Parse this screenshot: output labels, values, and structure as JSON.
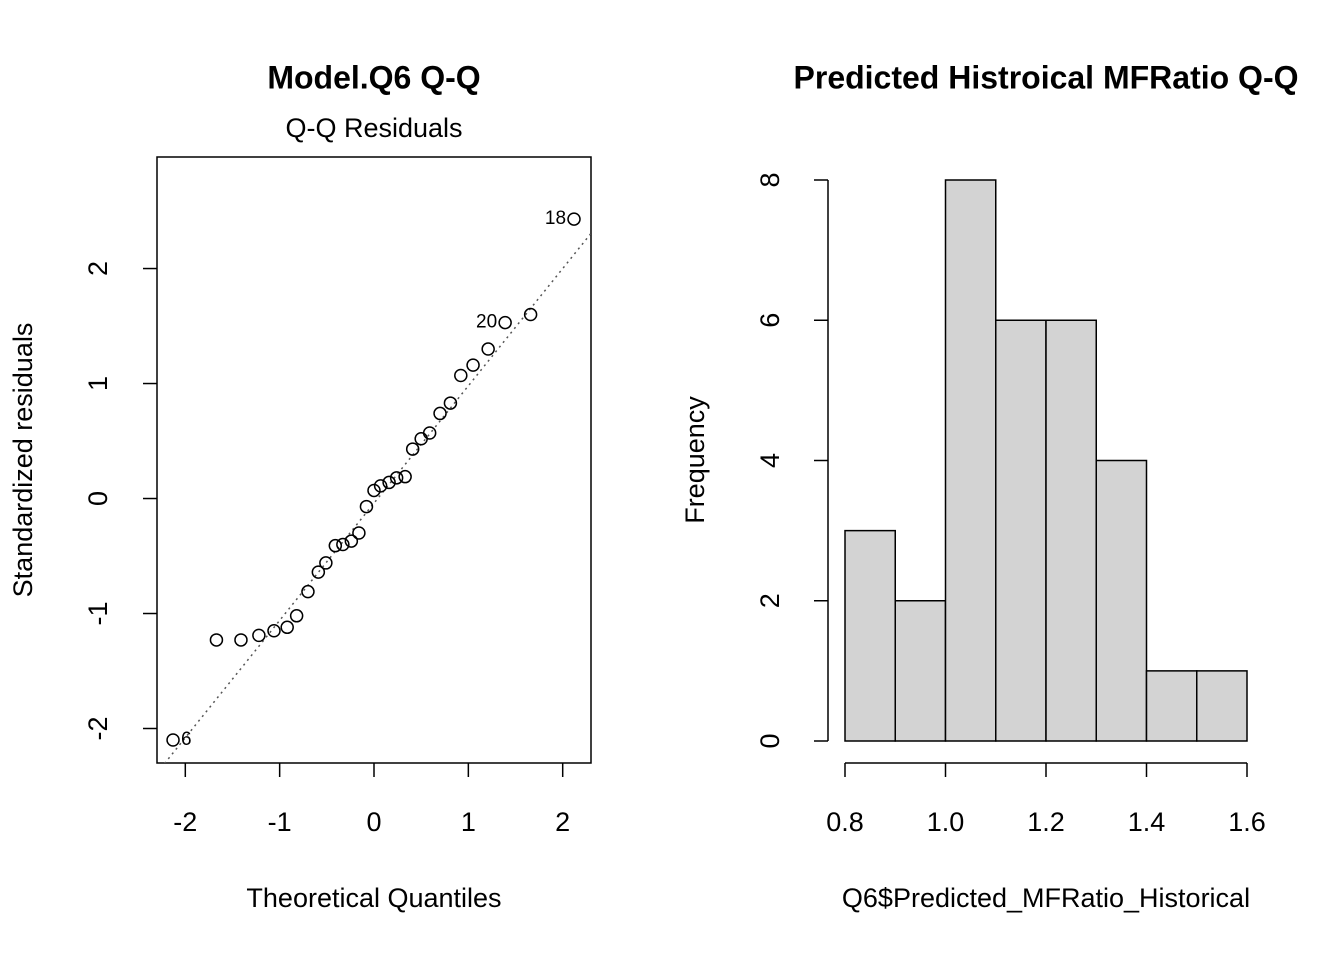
{
  "chart_data": [
    {
      "type": "scatter",
      "title": "Model.Q6 Q-Q",
      "subtitle": "Q-Q Residuals",
      "x_label": "Theoretical Quantiles",
      "y_label": "Standardized residuals",
      "x": [
        -2.13,
        -1.67,
        -1.41,
        -1.22,
        -1.06,
        -0.92,
        -0.82,
        -0.7,
        -0.59,
        -0.51,
        -0.41,
        -0.33,
        -0.24,
        -0.16,
        -0.08,
        0,
        0.07,
        0.16,
        0.24,
        0.33,
        0.41,
        0.5,
        0.59,
        0.7,
        0.81,
        0.92,
        1.05,
        1.21,
        1.39,
        1.66,
        2.12
      ],
      "values": [
        -2.1,
        -1.23,
        -1.23,
        -1.19,
        -1.15,
        -1.12,
        -1.02,
        -0.81,
        -0.64,
        -0.56,
        -0.41,
        -0.4,
        -0.37,
        -0.3,
        -0.07,
        0.07,
        0.11,
        0.14,
        0.18,
        0.19,
        0.43,
        0.52,
        0.57,
        0.74,
        0.83,
        1.07,
        1.16,
        1.3,
        1.53,
        1.6,
        2.43
      ],
      "point_labels": [
        "6",
        null,
        null,
        null,
        null,
        null,
        null,
        null,
        null,
        null,
        null,
        null,
        null,
        null,
        null,
        null,
        null,
        null,
        null,
        null,
        null,
        null,
        null,
        null,
        null,
        null,
        null,
        null,
        "20",
        null,
        "18"
      ],
      "reference_line": {
        "intercept": -0.04,
        "slope": 1.02
      },
      "xlim": [
        -2.3,
        2.3
      ],
      "ylim": [
        -2.3,
        2.97
      ],
      "xticks": [
        -2,
        -1,
        0,
        1,
        2
      ],
      "yticks": [
        -2,
        -1,
        0,
        1,
        2
      ]
    },
    {
      "type": "histogram",
      "title": "Predicted Histroical MFRatio Q-Q",
      "x_label": "Q6$Predicted_MFRatio_Historical",
      "y_label": "Frequency",
      "bins": [
        0.8,
        0.9,
        1.0,
        1.1,
        1.2,
        1.3,
        1.4,
        1.5,
        1.6
      ],
      "values": [
        3,
        2,
        8,
        6,
        6,
        4,
        1,
        1
      ],
      "color": "#d3d3d3",
      "xlim": [
        0.8,
        1.6
      ],
      "ylim": [
        0,
        8
      ],
      "xticks": [
        0.8,
        {
          "value": 1,
          "label": "1.0"
        },
        1.2,
        1.4,
        1.6
      ],
      "yticks": [
        0,
        2,
        4,
        6,
        8
      ]
    }
  ]
}
